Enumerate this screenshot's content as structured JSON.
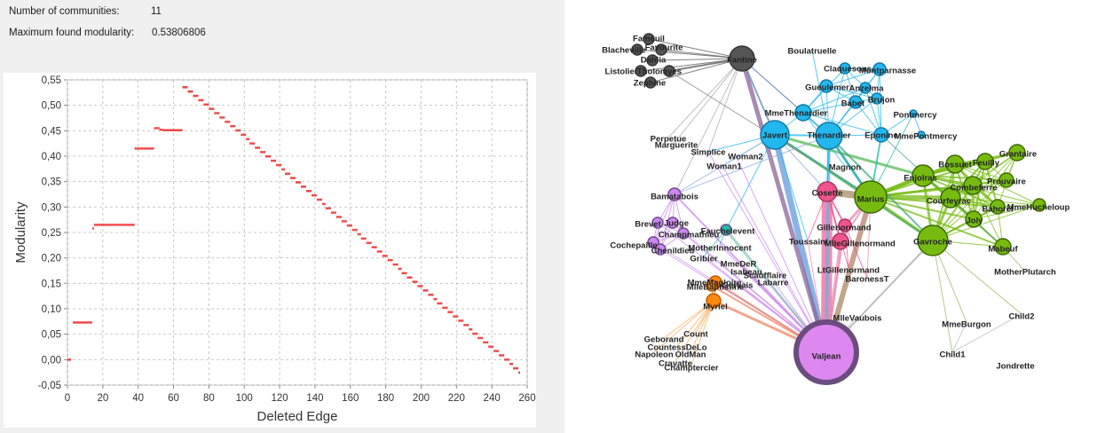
{
  "stats": {
    "communities_label": "Number of communities:",
    "communities_value": "11",
    "modularity_label": "Maximum found modularity:",
    "modularity_value": "0.53806806"
  },
  "chart_data": {
    "type": "scatter",
    "xlabel": "Deleted Edge",
    "ylabel": "Modularity",
    "xlim": [
      0,
      260
    ],
    "ylim": [
      -0.05,
      0.55
    ],
    "xticks": [
      "0",
      "20",
      "40",
      "60",
      "80",
      "100",
      "120",
      "140",
      "160",
      "180",
      "200",
      "220",
      "240",
      "260"
    ],
    "yticks": [
      "-0,05",
      "0,00",
      "0,05",
      "0,10",
      "0,15",
      "0,20",
      "0,25",
      "0,30",
      "0,35",
      "0,40",
      "0,45",
      "0,50",
      "0,55"
    ],
    "grid": true,
    "color": "#ee4444",
    "segments": [
      {
        "x": [
          0,
          2
        ],
        "y": 0.0
      },
      {
        "x": [
          3,
          14
        ],
        "y": 0.073
      },
      {
        "x": [
          14,
          15
        ],
        "y": 0.258
      },
      {
        "x": [
          15,
          38
        ],
        "y": 0.265
      },
      {
        "x": [
          38,
          49
        ],
        "y": 0.415
      },
      {
        "x": [
          49,
          52
        ],
        "y": 0.455
      },
      {
        "x": [
          52,
          54
        ],
        "y": 0.452
      },
      {
        "x": [
          54,
          65
        ],
        "y": 0.451
      },
      {
        "x": [
          65,
          100
        ],
        "y_start": 0.538,
        "y_end": 0.44
      },
      {
        "x": [
          100,
          256
        ],
        "y_start": 0.438,
        "y_end": -0.025
      }
    ]
  },
  "graph": {
    "nodes": [
      {
        "id": "Fameuil",
        "c": "dark"
      },
      {
        "id": "Blacheville",
        "c": "dark"
      },
      {
        "id": "Favourite",
        "c": "dark"
      },
      {
        "id": "Dahlia",
        "c": "dark"
      },
      {
        "id": "Listolier",
        "c": "dark"
      },
      {
        "id": "Tholomyes",
        "c": "dark"
      },
      {
        "id": "Zephine",
        "c": "dark"
      },
      {
        "id": "Fantine",
        "c": "dark"
      },
      {
        "id": "Boulatruelle",
        "c": "none"
      },
      {
        "id": "Claquesous",
        "c": "blue"
      },
      {
        "id": "Montparnasse",
        "c": "blue"
      },
      {
        "id": "Gueulemer",
        "c": "blue"
      },
      {
        "id": "Anzelma",
        "c": "blue"
      },
      {
        "id": "Babet",
        "c": "blue"
      },
      {
        "id": "Brujon",
        "c": "blue"
      },
      {
        "id": "MmeThenardier",
        "c": "blue"
      },
      {
        "id": "Pontmercy",
        "c": "blue"
      },
      {
        "id": "Javert",
        "c": "blue"
      },
      {
        "id": "Thenardier",
        "c": "blue"
      },
      {
        "id": "Eponine",
        "c": "blue"
      },
      {
        "id": "MmePontmercy",
        "c": "blue"
      },
      {
        "id": "Perpetue",
        "c": "none"
      },
      {
        "id": "Marguerite",
        "c": "none"
      },
      {
        "id": "Simplice",
        "c": "none"
      },
      {
        "id": "Woman2",
        "c": "none"
      },
      {
        "id": "Woman1",
        "c": "none"
      },
      {
        "id": "Magnon",
        "c": "none"
      },
      {
        "id": "Bossuet",
        "c": "green"
      },
      {
        "id": "Feuilly",
        "c": "green"
      },
      {
        "id": "Grantaire",
        "c": "green"
      },
      {
        "id": "Enjolras",
        "c": "green"
      },
      {
        "id": "Combeferre",
        "c": "green"
      },
      {
        "id": "Prouvaire",
        "c": "green"
      },
      {
        "id": "Courfeyrac",
        "c": "green"
      },
      {
        "id": "Bahorel",
        "c": "green"
      },
      {
        "id": "MmeHucheloup",
        "c": "green"
      },
      {
        "id": "Joly",
        "c": "green"
      },
      {
        "id": "Marius",
        "c": "green"
      },
      {
        "id": "Gavroche",
        "c": "green"
      },
      {
        "id": "Mabeuf",
        "c": "green"
      },
      {
        "id": "MotherPlutarch",
        "c": "none"
      },
      {
        "id": "Cosette",
        "c": "pink"
      },
      {
        "id": "Gillenormand",
        "c": "pink"
      },
      {
        "id": "Toussaint",
        "c": "none"
      },
      {
        "id": "MlleGillenormand",
        "c": "pink"
      },
      {
        "id": "LtGillenormand",
        "c": "none"
      },
      {
        "id": "BaronessT",
        "c": "none"
      },
      {
        "id": "MlleVaubois",
        "c": "none"
      },
      {
        "id": "Bamatabois",
        "c": "purple"
      },
      {
        "id": "Brevet",
        "c": "purple"
      },
      {
        "id": "Chenildieu",
        "c": "purple"
      },
      {
        "id": "Judge",
        "c": "purple"
      },
      {
        "id": "Champmathieu",
        "c": "purple"
      },
      {
        "id": "Cochepaille",
        "c": "purple"
      },
      {
        "id": "Fauchelevent",
        "c": "teal"
      },
      {
        "id": "MotherInnocent",
        "c": "none"
      },
      {
        "id": "Gribier",
        "c": "none"
      },
      {
        "id": "MmeDeR",
        "c": "none"
      },
      {
        "id": "Isabeau",
        "c": "none"
      },
      {
        "id": "Scaufflaire",
        "c": "none"
      },
      {
        "id": "Gervais",
        "c": "none"
      },
      {
        "id": "Labarre",
        "c": "none"
      },
      {
        "id": "MmeMagloire",
        "c": "orange"
      },
      {
        "id": "MlleBaptistine",
        "c": "orange"
      },
      {
        "id": "Myriel",
        "c": "orange"
      },
      {
        "id": "Count",
        "c": "none"
      },
      {
        "id": "Geborand",
        "c": "none"
      },
      {
        "id": "CountessDeLo",
        "c": "none"
      },
      {
        "id": "Napoleon",
        "c": "none"
      },
      {
        "id": "OldMan",
        "c": "none"
      },
      {
        "id": "Cravatte",
        "c": "none"
      },
      {
        "id": "Champtercier",
        "c": "none"
      },
      {
        "id": "Valjean",
        "c": "violet"
      },
      {
        "id": "MmeBurgon",
        "c": "none"
      },
      {
        "id": "Child2",
        "c": "none"
      },
      {
        "id": "Child1",
        "c": "none"
      },
      {
        "id": "Jondrette",
        "c": "none"
      }
    ],
    "colors": {
      "dark": "#555555",
      "blue": "#22b8ee",
      "green": "#77bb11",
      "pink": "#ee5588",
      "purple": "#cc88ee",
      "orange": "#ff8811",
      "teal": "#22bbaa",
      "violet": "#dd88ee",
      "none": "#dddddd"
    }
  }
}
